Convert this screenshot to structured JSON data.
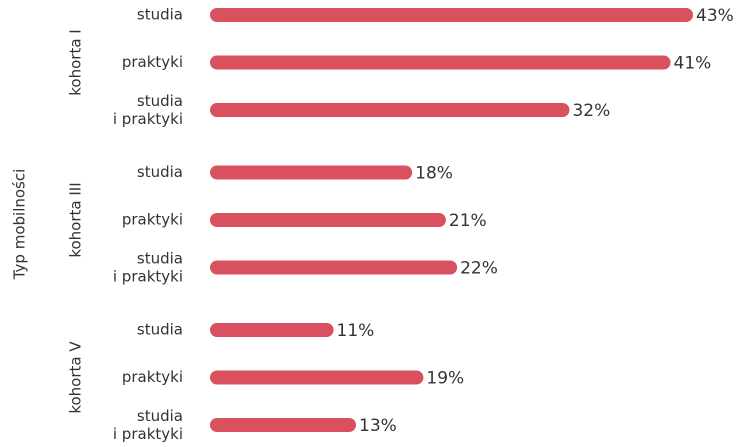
{
  "chart_data": {
    "type": "bar",
    "orientation": "horizontal",
    "ylabel": "Typ mobilności",
    "categories": [
      "studia",
      "praktyki",
      "studia\ni praktyki"
    ],
    "color": "#d9505e",
    "series": [
      {
        "name": "kohorta I",
        "values": [
          43,
          41,
          32
        ],
        "value_labels": [
          "43%",
          "41%",
          "32%"
        ]
      },
      {
        "name": "kohorta III",
        "values": [
          18,
          21,
          22
        ],
        "value_labels": [
          "18%",
          "21%",
          "22%"
        ]
      },
      {
        "name": "kohorta V",
        "values": [
          11,
          19,
          13
        ],
        "value_labels": [
          "11%",
          "19%",
          "13%"
        ]
      }
    ]
  }
}
